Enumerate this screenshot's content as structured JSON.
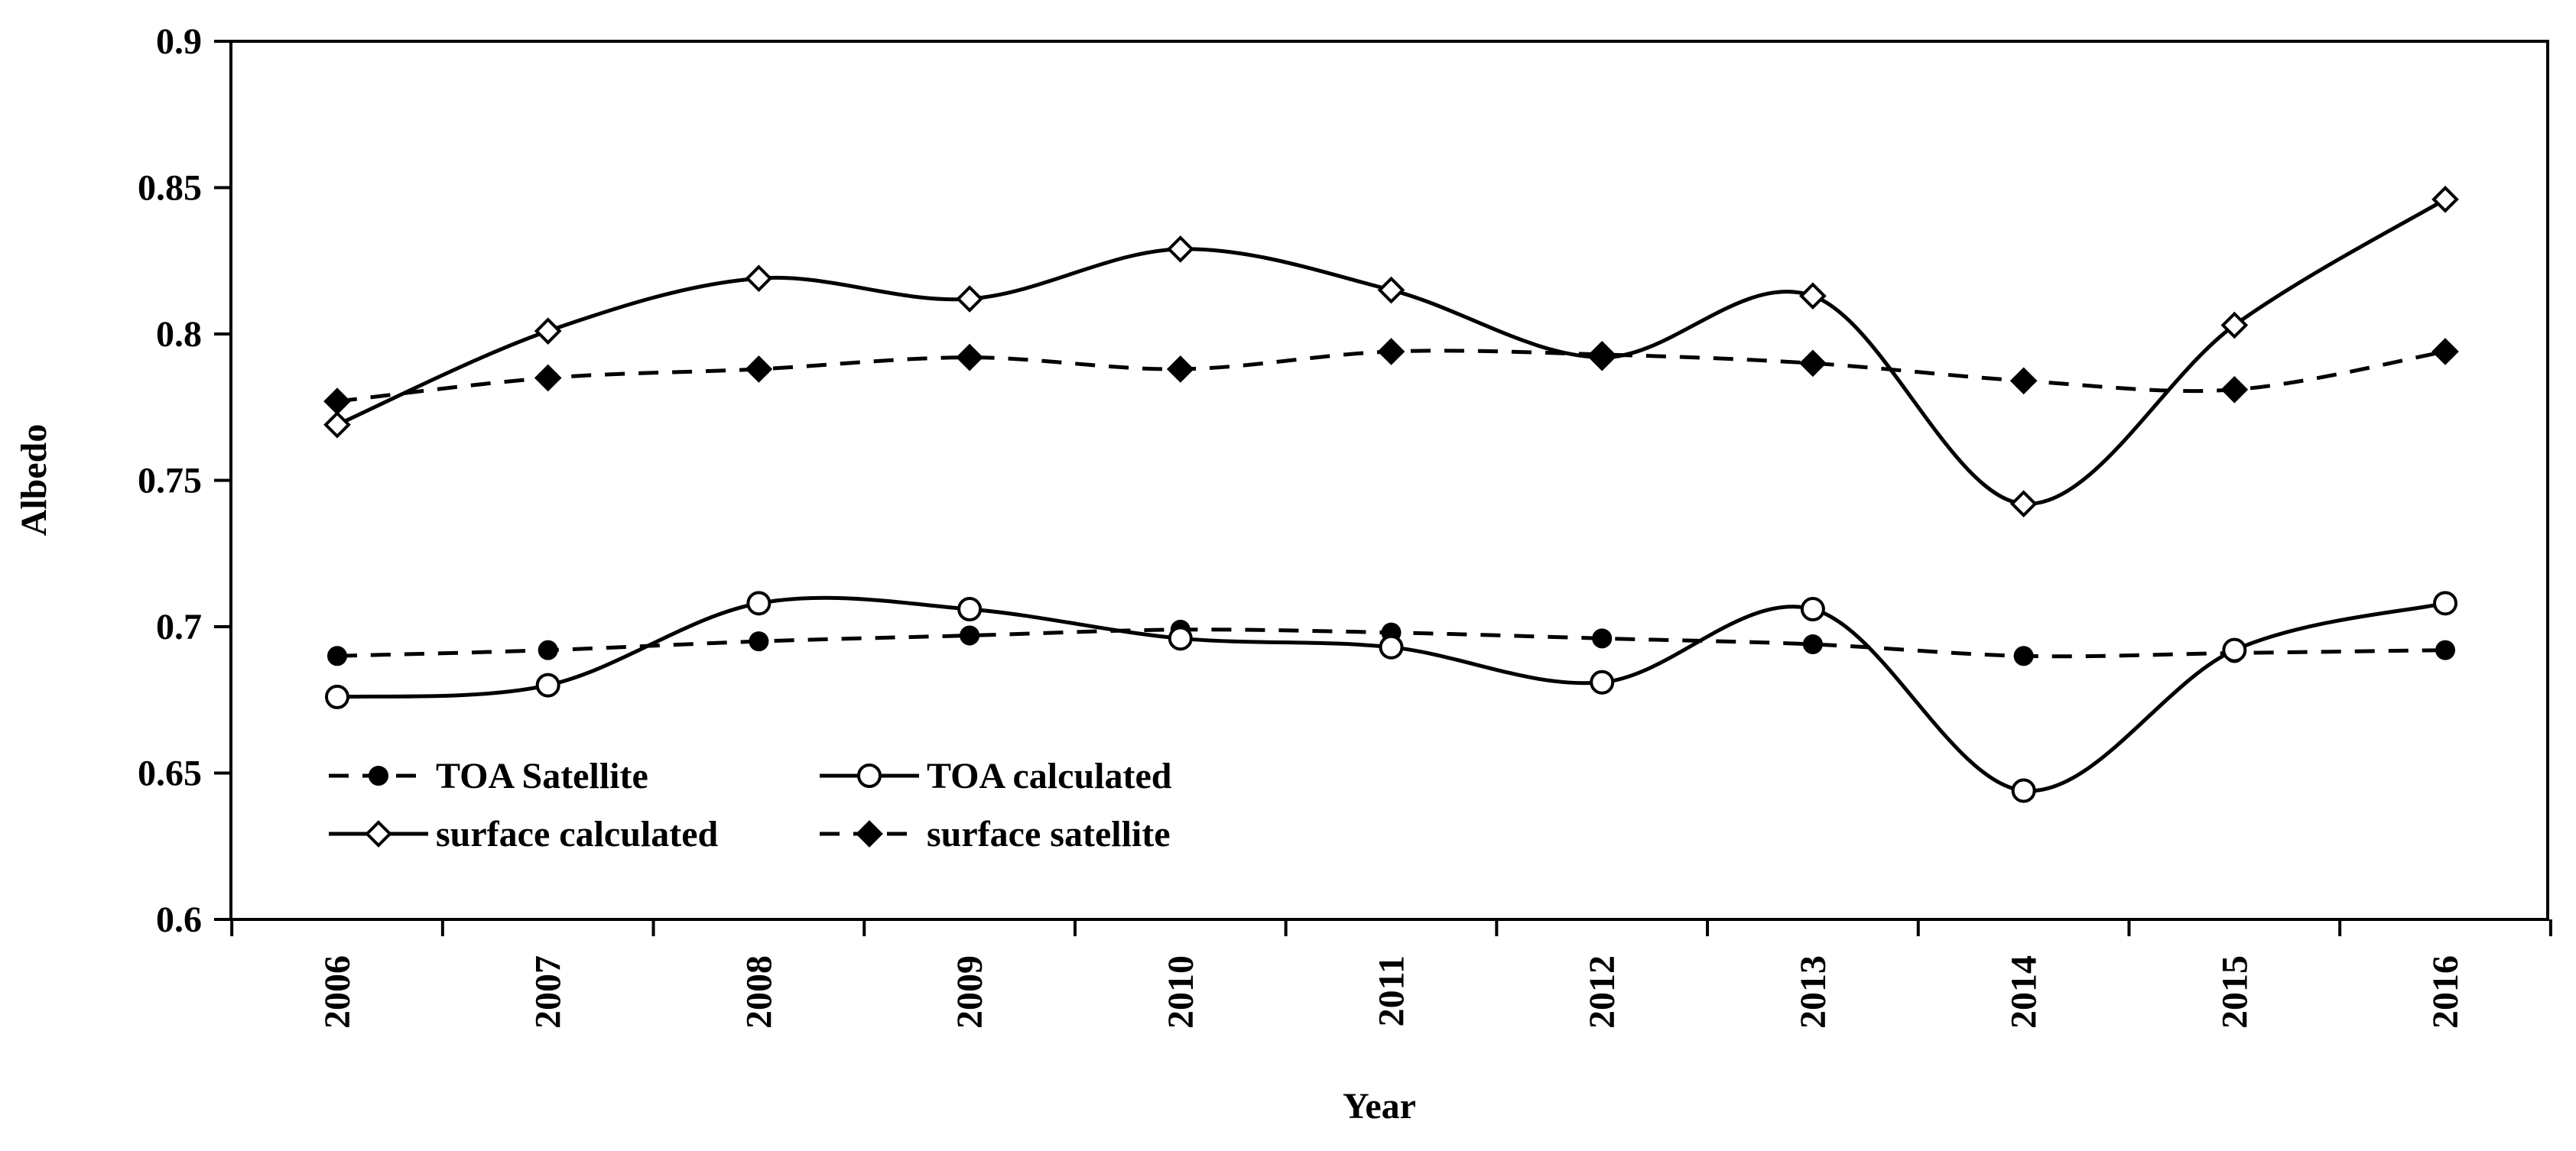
{
  "chart_data": {
    "type": "line",
    "xlabel": "Year",
    "ylabel": "Albedo",
    "ylim": [
      0.6,
      0.9
    ],
    "yticks": [
      "0.6",
      "0.65",
      "0.7",
      "0.75",
      "0.8",
      "0.85",
      "0.9"
    ],
    "categories": [
      "2006",
      "2007",
      "2008",
      "2009",
      "2010",
      "2011",
      "2012",
      "2013",
      "2014",
      "2015",
      "2016"
    ],
    "grid": false,
    "legend_position": "bottom-left",
    "series": [
      {
        "name": "TOA Satellite",
        "style": "dashed",
        "marker": "filled-circle",
        "color": "#000000",
        "values": [
          0.69,
          0.692,
          0.695,
          0.697,
          0.699,
          0.698,
          0.696,
          0.694,
          0.69,
          0.691,
          0.692
        ]
      },
      {
        "name": "TOA calculated",
        "style": "solid",
        "marker": "open-circle",
        "color": "#000000",
        "values": [
          0.676,
          0.68,
          0.708,
          0.706,
          0.696,
          0.693,
          0.681,
          0.706,
          0.644,
          0.692,
          0.708
        ]
      },
      {
        "name": "surface calculated",
        "style": "solid",
        "marker": "open-diamond",
        "color": "#000000",
        "values": [
          0.769,
          0.801,
          0.819,
          0.812,
          0.829,
          0.815,
          0.792,
          0.813,
          0.742,
          0.803,
          0.846
        ]
      },
      {
        "name": "surface satellite",
        "style": "dashed",
        "marker": "filled-diamond",
        "color": "#000000",
        "values": [
          0.777,
          0.785,
          0.788,
          0.792,
          0.788,
          0.794,
          0.793,
          0.79,
          0.784,
          0.781,
          0.794
        ]
      }
    ]
  }
}
